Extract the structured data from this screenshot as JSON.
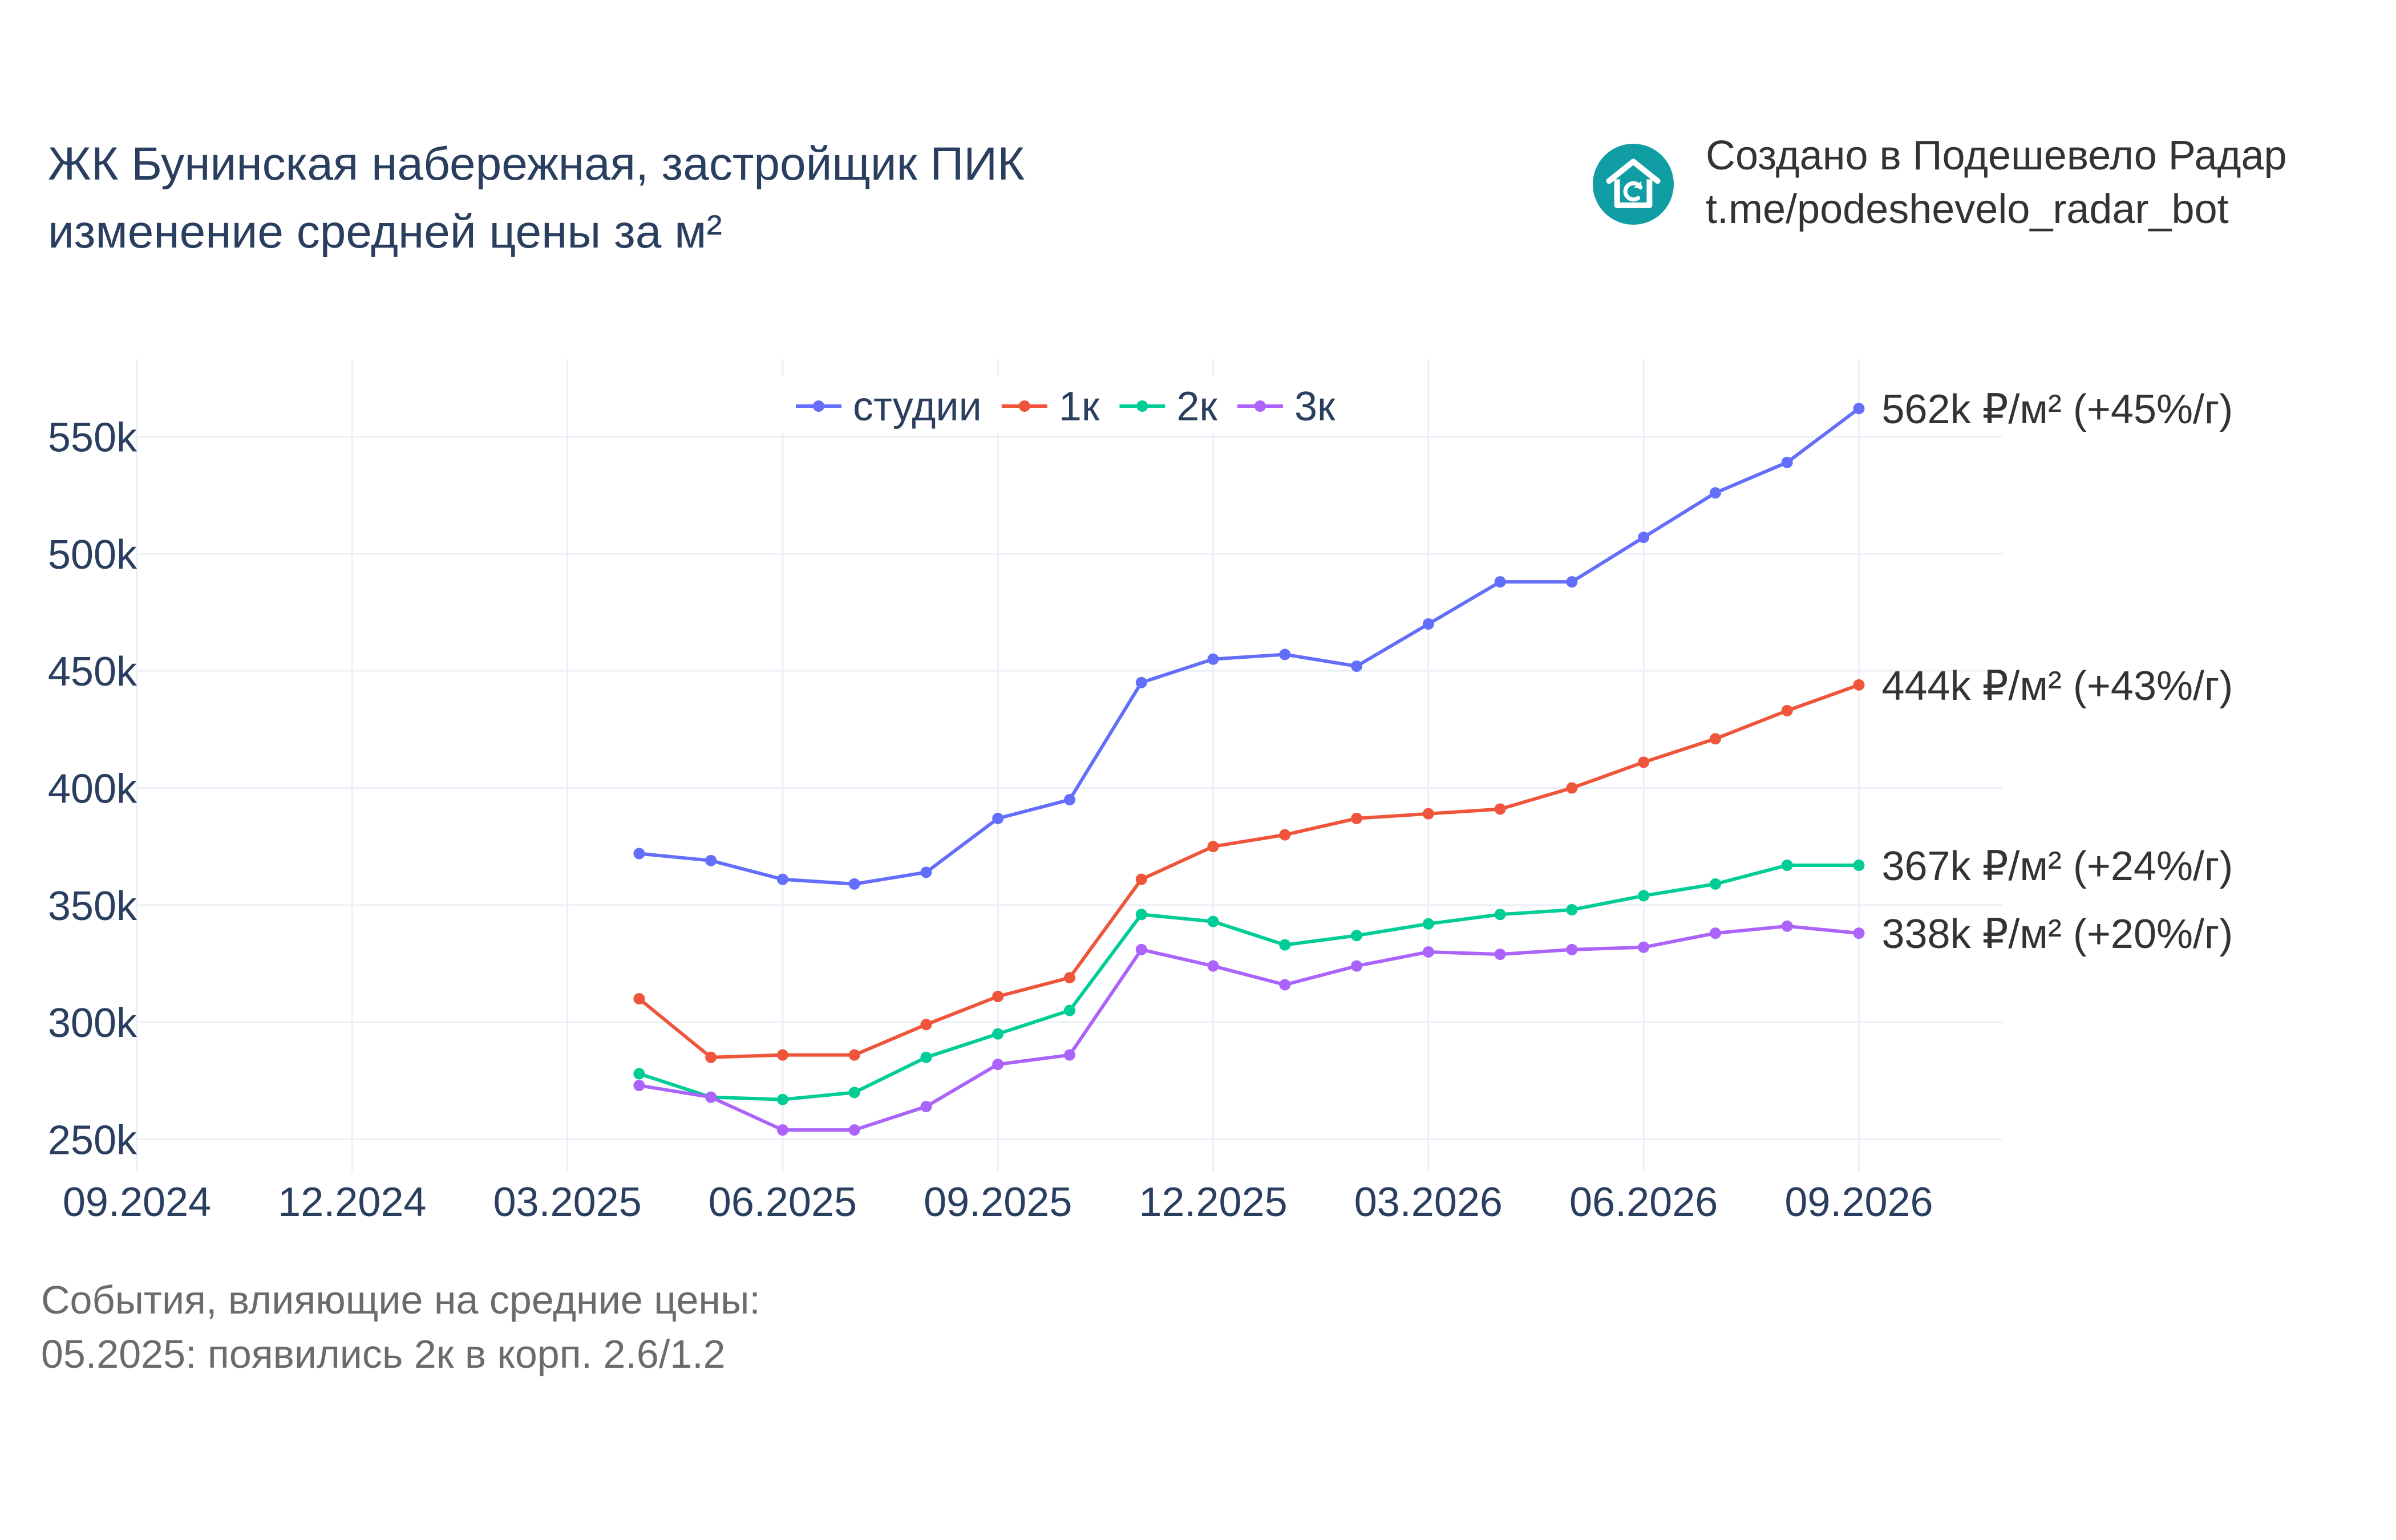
{
  "title": {
    "line1": "ЖК Бунинская набережная, застройщик ПИК",
    "line2": "изменение средней цены за м²"
  },
  "brand": {
    "line1": "Создано в Подешевело Радар",
    "line2": "t.me/podeshevelo_radar_bot",
    "logo_icon": "house-refresh-icon",
    "logo_color": "#119DA4"
  },
  "events": {
    "heading": "События, влияющие на средние цены:",
    "items": [
      "05.2025: появились 2к в корп. 2.6/1.2"
    ]
  },
  "chart_data": {
    "type": "line",
    "x_tick_labels": [
      "09.2024",
      "12.2024",
      "03.2025",
      "06.2025",
      "09.2025",
      "12.2025",
      "03.2026",
      "06.2026",
      "09.2026"
    ],
    "y_tick_labels": [
      "250k",
      "300k",
      "350k",
      "400k",
      "450k",
      "500k",
      "550k"
    ],
    "y_tick_values": [
      250,
      300,
      350,
      400,
      450,
      500,
      550
    ],
    "ylim": [
      236,
      583
    ],
    "xlim": [
      "2024-09",
      "2026-11"
    ],
    "x": [
      "2025-04",
      "2025-05",
      "2025-06",
      "2025-07",
      "2025-08",
      "2025-09",
      "2025-10",
      "2025-11",
      "2025-12",
      "2026-01",
      "2026-02",
      "2026-03",
      "2026-04",
      "2026-05",
      "2026-06",
      "2026-07",
      "2026-08",
      "2026-09"
    ],
    "y_unit": "тыс. ₽/м²",
    "grid": true,
    "legend_position": "top-center",
    "series": [
      {
        "name": "студии",
        "color": "#636EFA",
        "end_label": "562k ₽/м² (+45%/г)",
        "values": [
          372,
          369,
          361,
          359,
          364,
          387,
          395,
          445,
          455,
          457,
          452,
          470,
          488,
          488,
          507,
          526,
          539,
          562
        ]
      },
      {
        "name": "1к",
        "color": "#EF553B",
        "end_label": "444k ₽/м² (+43%/г)",
        "values": [
          310,
          285,
          286,
          286,
          299,
          311,
          319,
          361,
          375,
          380,
          387,
          389,
          391,
          400,
          411,
          421,
          433,
          444
        ]
      },
      {
        "name": "2к",
        "color": "#00CC96",
        "end_label": "367k ₽/м² (+24%/г)",
        "values": [
          278,
          268,
          267,
          270,
          285,
          295,
          305,
          346,
          343,
          333,
          337,
          342,
          346,
          348,
          354,
          359,
          367,
          367
        ]
      },
      {
        "name": "3к",
        "color": "#AB63FA",
        "end_label": "338k ₽/м² (+20%/г)",
        "values": [
          273,
          268,
          254,
          254,
          264,
          282,
          286,
          331,
          324,
          316,
          324,
          330,
          329,
          331,
          332,
          338,
          341,
          338
        ]
      }
    ]
  }
}
